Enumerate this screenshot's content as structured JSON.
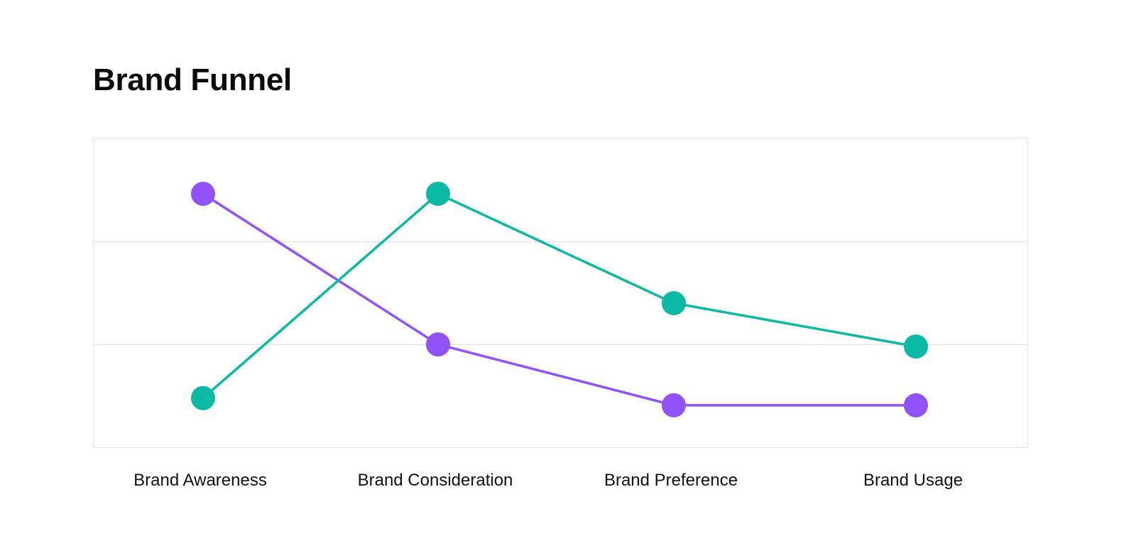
{
  "chart_data": {
    "type": "line",
    "title": "Brand Funnel",
    "categories": [
      "Brand Awareness",
      "Brand Consideration",
      "Brand Preference",
      "Brand Usage"
    ],
    "series": [
      {
        "color": "#9152FB",
        "values": [
          2.46,
          1.0,
          0.41,
          0.41
        ]
      },
      {
        "color": "#0ABAA5",
        "values": [
          0.48,
          2.46,
          1.4,
          0.98
        ]
      }
    ],
    "ylim": [
      0,
      3
    ],
    "y_gridlines": [
      1,
      2
    ],
    "grid": true,
    "legend": "none",
    "xlabel": "",
    "ylabel": ""
  }
}
